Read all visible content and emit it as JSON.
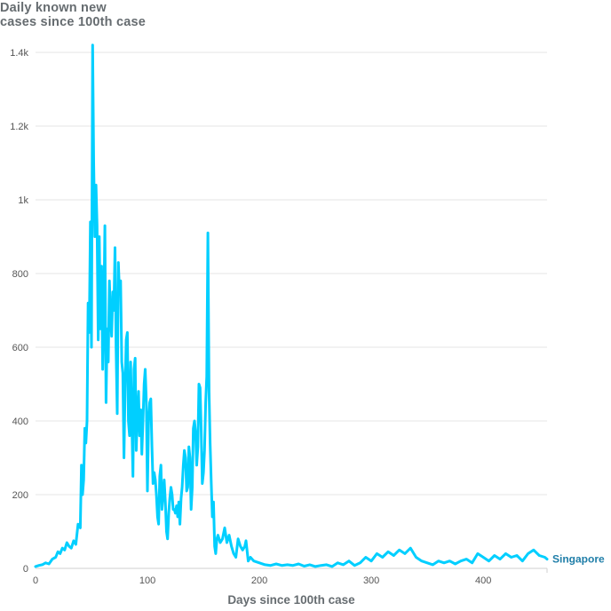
{
  "chart_data": {
    "type": "line",
    "title_line1": "Daily known new",
    "title_line2": "cases since 100th case",
    "xlabel": "Days since 100th case",
    "ylabel": "",
    "xlim": [
      0,
      457
    ],
    "ylim": [
      0,
      1400
    ],
    "xticks": [
      0,
      100,
      200,
      300,
      400
    ],
    "xtick_labels": [
      "0",
      "100",
      "200",
      "300",
      "400"
    ],
    "yticks": [
      0,
      200,
      400,
      600,
      800,
      1000,
      1200,
      1400
    ],
    "ytick_labels": [
      "0",
      "200",
      "400",
      "600",
      "800",
      "1k",
      "1.2k",
      "1.4k"
    ],
    "grid": true,
    "series": [
      {
        "name": "Singapore",
        "color": "#00cfff",
        "label_color": "#1f7ea8",
        "points": [
          [
            0,
            5
          ],
          [
            3,
            8
          ],
          [
            6,
            10
          ],
          [
            9,
            15
          ],
          [
            12,
            12
          ],
          [
            15,
            25
          ],
          [
            18,
            30
          ],
          [
            20,
            45
          ],
          [
            22,
            40
          ],
          [
            24,
            55
          ],
          [
            26,
            50
          ],
          [
            28,
            70
          ],
          [
            30,
            60
          ],
          [
            32,
            55
          ],
          [
            34,
            75
          ],
          [
            36,
            65
          ],
          [
            38,
            120
          ],
          [
            40,
            110
          ],
          [
            41,
            280
          ],
          [
            42,
            200
          ],
          [
            43,
            240
          ],
          [
            44,
            380
          ],
          [
            45,
            340
          ],
          [
            46,
            400
          ],
          [
            47,
            720
          ],
          [
            48,
            640
          ],
          [
            49,
            940
          ],
          [
            50,
            600
          ],
          [
            51,
            1420
          ],
          [
            52,
            1100
          ],
          [
            53,
            900
          ],
          [
            54,
            1040
          ],
          [
            55,
            930
          ],
          [
            56,
            620
          ],
          [
            57,
            900
          ],
          [
            58,
            650
          ],
          [
            59,
            820
          ],
          [
            60,
            540
          ],
          [
            61,
            700
          ],
          [
            62,
            930
          ],
          [
            63,
            450
          ],
          [
            64,
            650
          ],
          [
            65,
            560
          ],
          [
            66,
            780
          ],
          [
            67,
            690
          ],
          [
            68,
            630
          ],
          [
            69,
            750
          ],
          [
            70,
            700
          ],
          [
            71,
            870
          ],
          [
            72,
            600
          ],
          [
            73,
            420
          ],
          [
            74,
            830
          ],
          [
            75,
            750
          ],
          [
            76,
            780
          ],
          [
            77,
            560
          ],
          [
            78,
            530
          ],
          [
            79,
            300
          ],
          [
            80,
            480
          ],
          [
            81,
            620
          ],
          [
            82,
            640
          ],
          [
            83,
            400
          ],
          [
            84,
            360
          ],
          [
            85,
            560
          ],
          [
            86,
            400
          ],
          [
            87,
            250
          ],
          [
            88,
            540
          ],
          [
            89,
            570
          ],
          [
            90,
            320
          ],
          [
            91,
            420
          ],
          [
            92,
            480
          ],
          [
            93,
            360
          ],
          [
            94,
            430
          ],
          [
            95,
            310
          ],
          [
            96,
            400
          ],
          [
            97,
            500
          ],
          [
            98,
            540
          ],
          [
            99,
            450
          ],
          [
            100,
            210
          ],
          [
            101,
            400
          ],
          [
            102,
            450
          ],
          [
            103,
            460
          ],
          [
            104,
            330
          ],
          [
            105,
            230
          ],
          [
            106,
            260
          ],
          [
            107,
            240
          ],
          [
            108,
            200
          ],
          [
            109,
            140
          ],
          [
            110,
            120
          ],
          [
            111,
            250
          ],
          [
            112,
            280
          ],
          [
            113,
            160
          ],
          [
            114,
            200
          ],
          [
            115,
            240
          ],
          [
            116,
            180
          ],
          [
            117,
            100
          ],
          [
            118,
            80
          ],
          [
            119,
            150
          ],
          [
            120,
            190
          ],
          [
            121,
            220
          ],
          [
            122,
            200
          ],
          [
            123,
            160
          ],
          [
            124,
            160
          ],
          [
            125,
            150
          ],
          [
            126,
            170
          ],
          [
            127,
            140
          ],
          [
            128,
            180
          ],
          [
            129,
            120
          ],
          [
            130,
            190
          ],
          [
            131,
            220
          ],
          [
            132,
            280
          ],
          [
            133,
            320
          ],
          [
            134,
            300
          ],
          [
            135,
            210
          ],
          [
            136,
            220
          ],
          [
            137,
            330
          ],
          [
            138,
            300
          ],
          [
            139,
            160
          ],
          [
            140,
            220
          ],
          [
            141,
            380
          ],
          [
            142,
            400
          ],
          [
            143,
            370
          ],
          [
            144,
            280
          ],
          [
            145,
            330
          ],
          [
            146,
            500
          ],
          [
            147,
            490
          ],
          [
            148,
            380
          ],
          [
            149,
            230
          ],
          [
            150,
            260
          ],
          [
            151,
            320
          ],
          [
            152,
            450
          ],
          [
            153,
            520
          ],
          [
            154,
            910
          ],
          [
            155,
            480
          ],
          [
            156,
            340
          ],
          [
            157,
            230
          ],
          [
            158,
            140
          ],
          [
            159,
            180
          ],
          [
            160,
            60
          ],
          [
            161,
            40
          ],
          [
            162,
            80
          ],
          [
            163,
            90
          ],
          [
            165,
            70
          ],
          [
            167,
            80
          ],
          [
            169,
            110
          ],
          [
            171,
            70
          ],
          [
            173,
            90
          ],
          [
            175,
            60
          ],
          [
            177,
            40
          ],
          [
            179,
            30
          ],
          [
            181,
            80
          ],
          [
            183,
            60
          ],
          [
            185,
            50
          ],
          [
            187,
            60
          ],
          [
            188,
            75
          ],
          [
            190,
            20
          ],
          [
            192,
            30
          ],
          [
            195,
            20
          ],
          [
            200,
            15
          ],
          [
            205,
            10
          ],
          [
            210,
            8
          ],
          [
            215,
            12
          ],
          [
            220,
            8
          ],
          [
            225,
            10
          ],
          [
            230,
            8
          ],
          [
            235,
            12
          ],
          [
            240,
            6
          ],
          [
            245,
            10
          ],
          [
            250,
            5
          ],
          [
            255,
            8
          ],
          [
            260,
            10
          ],
          [
            265,
            5
          ],
          [
            270,
            15
          ],
          [
            275,
            10
          ],
          [
            280,
            20
          ],
          [
            285,
            8
          ],
          [
            290,
            15
          ],
          [
            295,
            30
          ],
          [
            300,
            20
          ],
          [
            305,
            40
          ],
          [
            310,
            30
          ],
          [
            315,
            45
          ],
          [
            320,
            35
          ],
          [
            325,
            50
          ],
          [
            330,
            40
          ],
          [
            335,
            55
          ],
          [
            340,
            30
          ],
          [
            345,
            20
          ],
          [
            350,
            15
          ],
          [
            355,
            10
          ],
          [
            360,
            20
          ],
          [
            365,
            15
          ],
          [
            370,
            20
          ],
          [
            375,
            12
          ],
          [
            380,
            20
          ],
          [
            385,
            25
          ],
          [
            390,
            15
          ],
          [
            395,
            40
          ],
          [
            400,
            30
          ],
          [
            405,
            20
          ],
          [
            410,
            35
          ],
          [
            415,
            25
          ],
          [
            420,
            40
          ],
          [
            425,
            30
          ],
          [
            430,
            35
          ],
          [
            435,
            20
          ],
          [
            440,
            40
          ],
          [
            445,
            50
          ],
          [
            450,
            35
          ],
          [
            455,
            30
          ],
          [
            457,
            25
          ]
        ]
      }
    ]
  }
}
